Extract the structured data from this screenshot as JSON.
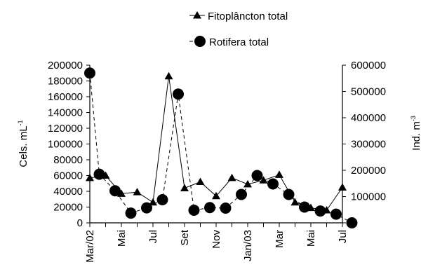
{
  "chart_data": {
    "type": "line",
    "x_categories": [
      "Mar/02",
      "",
      "Mai",
      "",
      "Jul",
      "",
      "Set",
      "",
      "Nov",
      "",
      "Jan/03",
      "",
      "Mar",
      "",
      "Mai",
      "",
      "Jul"
    ],
    "left_axis": {
      "label_main": "Cels. mL",
      "label_sup": "-1",
      "ylim": [
        0,
        200000
      ],
      "ticks": [
        "0",
        "20000",
        "40000",
        "60000",
        "80000",
        "100000",
        "120000",
        "140000",
        "160000",
        "180000",
        "200000"
      ]
    },
    "right_axis": {
      "label_main": "Ind. m",
      "label_sup": "-3",
      "ylim": [
        0,
        600000
      ],
      "ticks": [
        "0",
        "100000",
        "200000",
        "300000",
        "400000",
        "500000",
        "600000"
      ]
    },
    "series": [
      {
        "name": "Fitoplâncton total",
        "axis": "left",
        "marker": "triangle",
        "line": "solid",
        "x": [
          0,
          1,
          2,
          3,
          4,
          5,
          6,
          7,
          8,
          9,
          10,
          11,
          12,
          13,
          14,
          15,
          16
        ],
        "values": [
          57000,
          60000,
          37000,
          39000,
          26000,
          186000,
          44000,
          52000,
          34000,
          57000,
          49000,
          54000,
          61000,
          26000,
          19000,
          16000,
          45000
        ]
      },
      {
        "name": "Rotifera total",
        "axis": "right",
        "marker": "circle",
        "line": "dashed",
        "x": [
          0,
          0.6,
          1.6,
          2.6,
          3.6,
          4.6,
          5.6,
          6.6,
          7.6,
          8.6,
          9.6,
          10.6,
          11.6,
          12.6,
          13.6,
          14.6,
          15.6,
          16.6
        ],
        "values": [
          570000,
          185000,
          122000,
          37000,
          57000,
          88000,
          490000,
          48000,
          58000,
          56000,
          108000,
          180000,
          148000,
          108000,
          60000,
          45000,
          33000,
          0
        ]
      }
    ],
    "legend": [
      "Fitoplâncton total",
      "Rotifera total"
    ],
    "legend_placement": "top",
    "grid": false
  }
}
